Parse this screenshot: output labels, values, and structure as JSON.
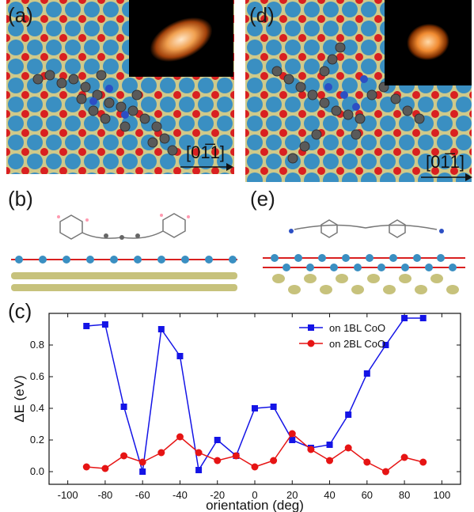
{
  "panels": {
    "a": {
      "letter": "(a)",
      "direction": "[01̅1]"
    },
    "b": {
      "letter": "(b)"
    },
    "c": {
      "letter": "(c)"
    },
    "d": {
      "letter": "(d)",
      "direction": "[01̅1]"
    },
    "e": {
      "letter": "(e)"
    }
  },
  "colors": {
    "series1": "#1414e6",
    "series2": "#e61414",
    "surface_o": "#d92020",
    "surface_co": "#3a8fc2",
    "surface_ag": "#cfc98a"
  },
  "chart_data": {
    "type": "line",
    "xlabel": "orientation (deg)",
    "ylabel": "ΔE (eV)",
    "xlim": [
      -110,
      110
    ],
    "ylim": [
      -0.08,
      1.0
    ],
    "xticks": [
      -100,
      -80,
      -60,
      -40,
      -20,
      0,
      20,
      40,
      60,
      80,
      100
    ],
    "yticks": [
      0.0,
      0.2,
      0.4,
      0.6,
      0.8
    ],
    "legend_position": "top-right",
    "series": [
      {
        "name": "on 1BL CoO",
        "marker": "square",
        "x": [
          -90,
          -80,
          -70,
          -60,
          -50,
          -40,
          -30,
          -20,
          -10,
          0,
          10,
          20,
          30,
          40,
          50,
          60,
          70,
          80,
          90
        ],
        "y": [
          0.92,
          0.93,
          0.41,
          0.0,
          0.9,
          0.73,
          0.01,
          0.2,
          0.1,
          0.4,
          0.41,
          0.2,
          0.15,
          0.17,
          0.36,
          0.62,
          0.8,
          0.97,
          0.97
        ]
      },
      {
        "name": "on 2BL CoO",
        "marker": "circle",
        "x": [
          -90,
          -80,
          -70,
          -60,
          -50,
          -40,
          -30,
          -20,
          -10,
          0,
          10,
          20,
          30,
          40,
          50,
          60,
          70,
          80,
          90
        ],
        "y": [
          0.03,
          0.02,
          0.1,
          0.06,
          0.12,
          0.22,
          0.12,
          0.07,
          0.1,
          0.03,
          0.07,
          0.24,
          0.14,
          0.07,
          0.15,
          0.06,
          0.0,
          0.09,
          0.06
        ]
      }
    ]
  }
}
